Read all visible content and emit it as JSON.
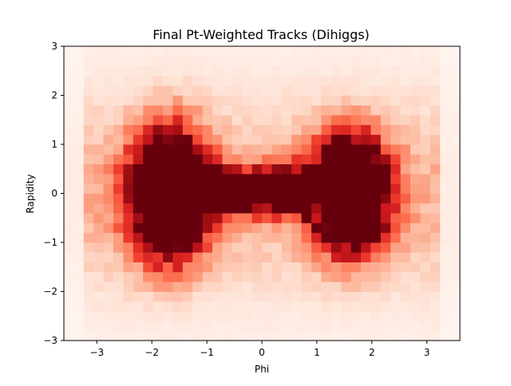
{
  "chart_data": {
    "type": "heatmap",
    "title": "Final Pt-Weighted Tracks (Dihiggs)",
    "xlabel": "Phi",
    "ylabel": "Rapidity",
    "xlim": [
      -3.6,
      3.6
    ],
    "ylim": [
      -3,
      3
    ],
    "xticks": [
      -3,
      -2,
      -1,
      0,
      1,
      2,
      3
    ],
    "yticks": [
      -3,
      -2,
      -1,
      0,
      1,
      2,
      3
    ],
    "xtick_labels": [
      "−3",
      "−2",
      "−1",
      "0",
      "1",
      "2",
      "3"
    ],
    "ytick_labels": [
      "−3",
      "−2",
      "−1",
      "0",
      "1",
      "2",
      "3"
    ],
    "colormap": "Reds",
    "bins_x": 40,
    "bins_y": 30,
    "peaks": [
      {
        "phi": -1.7,
        "rapidity": 0.0,
        "sigma_phi": 0.45,
        "sigma_rapidity": 0.85
      },
      {
        "phi": 1.6,
        "rapidity": 0.0,
        "sigma_phi": 0.45,
        "sigma_rapidity": 0.75
      }
    ],
    "bridge": {
      "phi_range": [
        -1.0,
        0.9
      ],
      "rapidity": 0.05,
      "relative_intensity": 0.7
    },
    "grid": false
  }
}
